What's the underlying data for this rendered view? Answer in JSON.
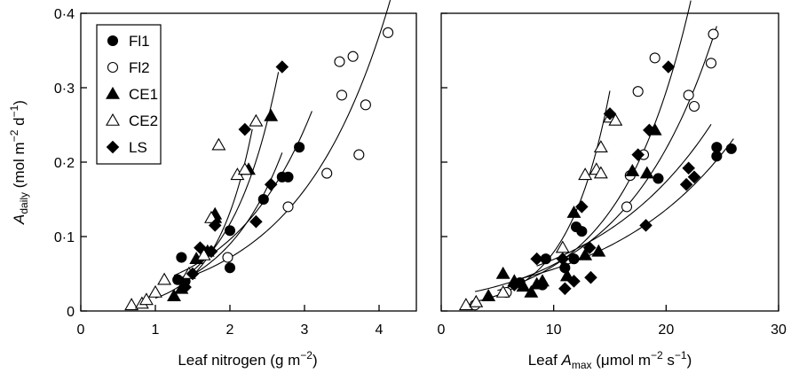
{
  "chart_data": [
    {
      "type": "scatter",
      "ylabel": {
        "main": "A",
        "sub": "daily",
        "rest": " (mol m",
        "sup1": "−2",
        "mid": " d",
        "sup2": "−1",
        "end": ")"
      },
      "xlabel": {
        "main": "Leaf nitrogen (g m",
        "sup": "−2",
        "end": ")"
      },
      "xlim": [
        0,
        4.5
      ],
      "ylim": [
        0,
        0.4
      ],
      "xticks": [
        0,
        1,
        2,
        3,
        4
      ],
      "xtick_labels": [
        "0",
        "1",
        "2",
        "3",
        "4"
      ],
      "yticks": [
        0,
        0.1,
        0.2,
        0.3,
        0.4
      ],
      "ytick_labels": [
        "0",
        "0·1",
        "0·2",
        "0·3",
        "0·4"
      ],
      "legend": {
        "placement": "top-left",
        "entries": [
          {
            "label": "Fl1",
            "marker": "circle-filled"
          },
          {
            "label": "Fl2",
            "marker": "circle-open"
          },
          {
            "label": "CE1",
            "marker": "triangle-filled"
          },
          {
            "label": "CE2",
            "marker": "triangle-open"
          },
          {
            "label": "LS",
            "marker": "diamond-filled"
          }
        ]
      },
      "series": [
        {
          "marker": "circle-filled",
          "points": [
            [
              1.35,
              0.072
            ],
            [
              1.3,
              0.042
            ],
            [
              1.4,
              0.04
            ],
            [
              2.0,
              0.108
            ],
            [
              2.0,
              0.058
            ],
            [
              2.45,
              0.15
            ],
            [
              2.7,
              0.18
            ],
            [
              2.78,
              0.18
            ],
            [
              2.93,
              0.22
            ]
          ],
          "curve": {
            "a": 0.0148,
            "b": 0.935,
            "x0": 1.25,
            "x1": 3.1
          }
        },
        {
          "marker": "circle-open",
          "points": [
            [
              1.97,
              0.072
            ],
            [
              2.78,
              0.14
            ],
            [
              3.3,
              0.185
            ],
            [
              3.47,
              0.335
            ],
            [
              3.5,
              0.29
            ],
            [
              3.65,
              0.342
            ],
            [
              3.73,
              0.21
            ],
            [
              3.82,
              0.277
            ],
            [
              4.12,
              0.374
            ]
          ],
          "curve": {
            "a": 0.0139,
            "b": 0.82,
            "x0": 1.5,
            "x1": 4.15
          }
        },
        {
          "marker": "triangle-filled",
          "points": [
            [
              1.25,
              0.02
            ],
            [
              1.35,
              0.03
            ],
            [
              1.55,
              0.07
            ],
            [
              1.7,
              0.08
            ],
            [
              1.8,
              0.125
            ],
            [
              1.8,
              0.13
            ],
            [
              2.25,
              0.19
            ],
            [
              2.55,
              0.262
            ]
          ],
          "curve": {
            "a": 0.00528,
            "b": 1.55,
            "x0": 1.25,
            "x1": 2.65
          }
        },
        {
          "marker": "triangle-open",
          "points": [
            [
              0.68,
              0.008
            ],
            [
              0.82,
              0.01
            ],
            [
              0.88,
              0.015
            ],
            [
              1.0,
              0.025
            ],
            [
              1.12,
              0.042
            ],
            [
              1.45,
              0.05
            ],
            [
              1.65,
              0.075
            ],
            [
              1.75,
              0.125
            ],
            [
              1.85,
              0.223
            ],
            [
              2.1,
              0.183
            ],
            [
              2.2,
              0.19
            ],
            [
              2.35,
              0.255
            ]
          ],
          "curve": {
            "a": 0.00224,
            "b": 2.04,
            "x0": 1.0,
            "x1": 2.3
          }
        },
        {
          "marker": "diamond-filled",
          "points": [
            [
              1.4,
              0.032
            ],
            [
              1.5,
              0.05
            ],
            [
              1.6,
              0.085
            ],
            [
              1.75,
              0.08
            ],
            [
              1.8,
              0.115
            ],
            [
              2.2,
              0.244
            ],
            [
              2.35,
              0.12
            ],
            [
              2.55,
              0.17
            ],
            [
              2.7,
              0.328
            ]
          ],
          "curve": {
            "a": 0.00768,
            "b": 1.23,
            "x0": 1.4,
            "x1": 2.7
          }
        }
      ]
    },
    {
      "type": "scatter",
      "xlabel": {
        "main": "Leaf ",
        "italic": "A",
        "sub": "max",
        "rest": " (μmol m",
        "sup1": "−2",
        "mid": " s",
        "sup2": "−1",
        "end": ")"
      },
      "xlim": [
        0,
        30
      ],
      "ylim": [
        0,
        0.4
      ],
      "xticks": [
        0,
        10,
        20,
        30
      ],
      "xtick_labels": [
        "0",
        "10",
        "20",
        "30"
      ],
      "series": [
        {
          "marker": "circle-filled",
          "points": [
            [
              7,
              0.038
            ],
            [
              9,
              0.035
            ],
            [
              9.3,
              0.07
            ],
            [
              11,
              0.058
            ],
            [
              11.8,
              0.07
            ],
            [
              12,
              0.113
            ],
            [
              12.5,
              0.107
            ],
            [
              19.3,
              0.178
            ],
            [
              24.5,
              0.22
            ],
            [
              24.5,
              0.208
            ],
            [
              25.8,
              0.218
            ]
          ],
          "curve": {
            "a": 0.0233,
            "b": 0.0883,
            "x0": 6.5,
            "x1": 26
          }
        },
        {
          "marker": "circle-open",
          "points": [
            [
              3,
              0.008
            ],
            [
              5.8,
              0.025
            ],
            [
              16.5,
              0.14
            ],
            [
              16.8,
              0.182
            ],
            [
              17.5,
              0.295
            ],
            [
              18,
              0.21
            ],
            [
              19,
              0.34
            ],
            [
              22,
              0.29
            ],
            [
              22.5,
              0.275
            ],
            [
              24,
              0.333
            ],
            [
              24.2,
              0.372
            ]
          ],
          "curve": {
            "a": 0.0179,
            "b": 0.125,
            "x0": 3,
            "x1": 24.5
          }
        },
        {
          "marker": "triangle-filled",
          "points": [
            [
              4.2,
              0.02
            ],
            [
              5.5,
              0.05
            ],
            [
              6.5,
              0.04
            ],
            [
              7.3,
              0.033
            ],
            [
              8,
              0.025
            ],
            [
              8.5,
              0.036
            ],
            [
              9,
              0.04
            ],
            [
              11.2,
              0.047
            ],
            [
              11.8,
              0.132
            ],
            [
              12.8,
              0.075
            ],
            [
              14,
              0.08
            ],
            [
              17,
              0.188
            ],
            [
              18.3,
              0.185
            ],
            [
              19,
              0.243
            ]
          ],
          "curve": {
            "a": 0.0125,
            "b": 0.158,
            "x0": 5,
            "x1": 22.2
          }
        },
        {
          "marker": "triangle-open",
          "points": [
            [
              2.2,
              0.008
            ],
            [
              3.1,
              0.012
            ],
            [
              5.5,
              0.025
            ],
            [
              10.8,
              0.085
            ],
            [
              12.8,
              0.183
            ],
            [
              13.8,
              0.19
            ],
            [
              14.2,
              0.22
            ],
            [
              14.2,
              0.185
            ],
            [
              15,
              0.26
            ],
            [
              15.5,
              0.256
            ]
          ],
          "curve": {
            "a": 0.00564,
            "b": 0.264,
            "x0": 3,
            "x1": 15
          }
        },
        {
          "marker": "diamond-filled",
          "points": [
            [
              6.5,
              0.035
            ],
            [
              8.5,
              0.07
            ],
            [
              10.8,
              0.07
            ],
            [
              11,
              0.03
            ],
            [
              11.8,
              0.04
            ],
            [
              12.5,
              0.14
            ],
            [
              13.2,
              0.085
            ],
            [
              13.3,
              0.045
            ],
            [
              15,
              0.265
            ],
            [
              17.5,
              0.21
            ],
            [
              18.2,
              0.115
            ],
            [
              18.5,
              0.243
            ],
            [
              20.2,
              0.328
            ],
            [
              21.8,
              0.17
            ],
            [
              22,
              0.192
            ],
            [
              22.5,
              0.18
            ]
          ],
          "curve": {
            "a": 0.0277,
            "b": 0.0918,
            "x0": 8.5,
            "x1": 24
          }
        }
      ]
    }
  ]
}
